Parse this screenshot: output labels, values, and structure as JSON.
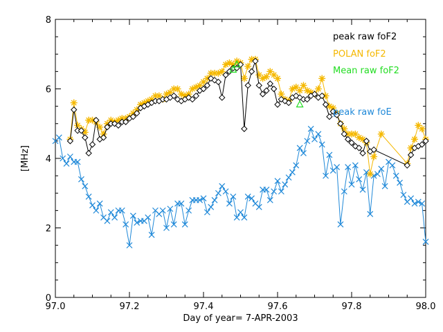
{
  "chart_data": {
    "type": "line",
    "title": "",
    "xlabel": "Day of year= 7-APR-2003",
    "ylabel": "[MHz]",
    "xlim": [
      97.0,
      98.0
    ],
    "ylim": [
      0,
      8
    ],
    "xticks": [
      97.0,
      97.2,
      97.4,
      97.6,
      97.8,
      98.0
    ],
    "xtick_labels": [
      "97.0",
      "97.2",
      "97.4",
      "97.6",
      "97.8",
      "98.0"
    ],
    "yticks": [
      0,
      2,
      4,
      6,
      8
    ],
    "ytick_labels": [
      "0",
      "2",
      "4",
      "6",
      "8"
    ],
    "legend_position": "top-right",
    "series": [
      {
        "name": "peak raw foF2",
        "color": "#000000",
        "marker": "diamond",
        "x": [
          97.04,
          97.05,
          97.06,
          97.07,
          97.08,
          97.09,
          97.1,
          97.11,
          97.12,
          97.13,
          97.14,
          97.15,
          97.16,
          97.17,
          97.18,
          97.19,
          97.2,
          97.21,
          97.22,
          97.23,
          97.24,
          97.25,
          97.26,
          97.27,
          97.28,
          97.29,
          97.3,
          97.31,
          97.32,
          97.33,
          97.34,
          97.35,
          97.36,
          97.37,
          97.38,
          97.39,
          97.4,
          97.41,
          97.42,
          97.43,
          97.44,
          97.45,
          97.46,
          97.47,
          97.48,
          97.49,
          97.5,
          97.51,
          97.52,
          97.53,
          97.54,
          97.55,
          97.56,
          97.57,
          97.58,
          97.59,
          97.6,
          97.61,
          97.62,
          97.63,
          97.64,
          97.65,
          97.66,
          97.67,
          97.68,
          97.69,
          97.7,
          97.71,
          97.72,
          97.73,
          97.74,
          97.75,
          97.76,
          97.77,
          97.78,
          97.79,
          97.8,
          97.81,
          97.82,
          97.83,
          97.84,
          97.85,
          97.86,
          97.95,
          97.96,
          97.97,
          97.98,
          97.99,
          98.0
        ],
        "y": [
          4.5,
          5.4,
          4.8,
          4.8,
          4.6,
          4.15,
          4.4,
          5.1,
          4.55,
          4.6,
          4.9,
          5.0,
          5.0,
          4.95,
          5.05,
          5.05,
          5.15,
          5.2,
          5.3,
          5.45,
          5.5,
          5.55,
          5.6,
          5.65,
          5.65,
          5.7,
          5.7,
          5.75,
          5.8,
          5.7,
          5.65,
          5.7,
          5.75,
          5.7,
          5.8,
          5.95,
          6.0,
          6.1,
          6.3,
          6.25,
          6.2,
          5.75,
          6.4,
          6.5,
          6.6,
          6.6,
          6.7,
          4.85,
          6.1,
          6.5,
          6.8,
          6.1,
          5.85,
          5.95,
          6.15,
          6.0,
          5.55,
          5.7,
          5.65,
          5.6,
          5.75,
          5.8,
          5.75,
          5.7,
          5.7,
          5.8,
          5.85,
          5.75,
          5.8,
          5.55,
          5.2,
          5.35,
          5.25,
          5.0,
          4.7,
          4.55,
          4.45,
          4.35,
          4.3,
          4.15,
          4.5,
          4.2,
          4.25,
          3.8,
          4.1,
          4.3,
          4.35,
          4.4,
          4.5
        ]
      },
      {
        "name": "POLAN foF2",
        "color": "#f5b800",
        "marker": "asterisk",
        "x": [
          97.04,
          97.05,
          97.06,
          97.07,
          97.08,
          97.09,
          97.1,
          97.11,
          97.12,
          97.13,
          97.14,
          97.15,
          97.16,
          97.17,
          97.18,
          97.19,
          97.2,
          97.21,
          97.22,
          97.23,
          97.24,
          97.25,
          97.26,
          97.27,
          97.28,
          97.29,
          97.3,
          97.31,
          97.32,
          97.33,
          97.34,
          97.35,
          97.36,
          97.37,
          97.38,
          97.39,
          97.4,
          97.41,
          97.42,
          97.43,
          97.44,
          97.45,
          97.46,
          97.47,
          97.48,
          97.49,
          97.5,
          97.51,
          97.52,
          97.53,
          97.54,
          97.55,
          97.56,
          97.57,
          97.58,
          97.59,
          97.6,
          97.61,
          97.62,
          97.63,
          97.64,
          97.65,
          97.66,
          97.67,
          97.68,
          97.69,
          97.7,
          97.71,
          97.72,
          97.73,
          97.74,
          97.75,
          97.76,
          97.77,
          97.78,
          97.79,
          97.8,
          97.81,
          97.82,
          97.83,
          97.84,
          97.85,
          97.86,
          97.88,
          97.95,
          97.96,
          97.97,
          97.98,
          97.99,
          98.0
        ],
        "y": [
          4.55,
          5.6,
          4.95,
          4.85,
          4.75,
          5.1,
          5.1,
          5.05,
          4.9,
          4.7,
          5.0,
          5.1,
          5.05,
          5.1,
          5.15,
          5.15,
          5.2,
          5.3,
          5.4,
          5.55,
          5.6,
          5.65,
          5.7,
          5.8,
          5.8,
          5.7,
          5.85,
          5.9,
          6.0,
          6.0,
          5.85,
          5.8,
          5.85,
          6.0,
          6.05,
          6.1,
          6.2,
          6.3,
          6.45,
          6.45,
          6.45,
          6.5,
          6.7,
          6.75,
          6.7,
          6.8,
          6.75,
          6.3,
          6.65,
          6.85,
          6.85,
          6.4,
          6.3,
          6.35,
          6.5,
          6.4,
          6.3,
          5.85,
          5.7,
          5.65,
          6.0,
          6.05,
          5.95,
          6.1,
          5.95,
          5.9,
          5.85,
          6.0,
          6.3,
          5.8,
          5.5,
          5.45,
          5.3,
          5.0,
          4.85,
          4.7,
          4.7,
          4.7,
          4.6,
          4.55,
          4.45,
          3.55,
          4.05,
          4.7,
          3.85,
          4.3,
          4.55,
          4.95,
          4.85,
          4.55
        ]
      },
      {
        "name": "Mean raw foF2",
        "color": "#22dd22",
        "marker": "triangle",
        "x": [
          97.48,
          97.49,
          97.66
        ],
        "y": [
          6.55,
          6.7,
          5.55
        ]
      },
      {
        "name": "peak raw foE",
        "color": "#1e88d8",
        "marker": "x",
        "x": [
          97.0,
          97.01,
          97.02,
          97.03,
          97.04,
          97.05,
          97.06,
          97.07,
          97.08,
          97.09,
          97.1,
          97.11,
          97.12,
          97.13,
          97.14,
          97.15,
          97.16,
          97.17,
          97.18,
          97.19,
          97.2,
          97.21,
          97.22,
          97.23,
          97.24,
          97.25,
          97.26,
          97.27,
          97.28,
          97.29,
          97.3,
          97.31,
          97.32,
          97.33,
          97.34,
          97.35,
          97.36,
          97.37,
          97.38,
          97.39,
          97.4,
          97.41,
          97.42,
          97.43,
          97.44,
          97.45,
          97.46,
          97.47,
          97.48,
          97.49,
          97.5,
          97.51,
          97.52,
          97.53,
          97.54,
          97.55,
          97.56,
          97.57,
          97.58,
          97.59,
          97.6,
          97.61,
          97.62,
          97.63,
          97.64,
          97.65,
          97.66,
          97.67,
          97.68,
          97.69,
          97.7,
          97.71,
          97.72,
          97.73,
          97.74,
          97.75,
          97.76,
          97.77,
          97.78,
          97.79,
          97.8,
          97.81,
          97.82,
          97.83,
          97.84,
          97.85,
          97.86,
          97.87,
          97.88,
          97.89,
          97.9,
          97.91,
          97.92,
          97.93,
          97.94,
          97.95,
          97.96,
          97.97,
          97.98,
          97.99,
          98.0
        ],
        "y": [
          4.5,
          4.6,
          4.0,
          3.85,
          4.05,
          3.9,
          3.9,
          3.4,
          3.2,
          2.9,
          2.65,
          2.5,
          2.7,
          2.3,
          2.2,
          2.45,
          2.3,
          2.5,
          2.5,
          2.1,
          1.5,
          2.35,
          2.15,
          2.2,
          2.2,
          2.3,
          1.8,
          2.5,
          2.4,
          2.5,
          2.0,
          2.55,
          2.1,
          2.7,
          2.7,
          2.1,
          2.5,
          2.8,
          2.8,
          2.8,
          2.85,
          2.45,
          2.6,
          2.8,
          3.0,
          3.2,
          3.05,
          2.7,
          2.9,
          2.3,
          2.45,
          2.3,
          2.9,
          2.85,
          2.7,
          2.6,
          3.1,
          3.1,
          2.8,
          3.05,
          3.35,
          3.05,
          3.25,
          3.45,
          3.6,
          3.8,
          4.3,
          4.15,
          4.5,
          4.85,
          4.55,
          4.7,
          4.4,
          3.5,
          4.1,
          3.65,
          3.75,
          2.1,
          3.05,
          3.75,
          3.25,
          3.8,
          3.4,
          3.1,
          3.6,
          2.4,
          3.5,
          3.55,
          3.7,
          3.2,
          3.9,
          3.8,
          3.5,
          3.3,
          2.95,
          2.75,
          2.85,
          2.7,
          2.75,
          2.7,
          1.6
        ]
      }
    ]
  }
}
